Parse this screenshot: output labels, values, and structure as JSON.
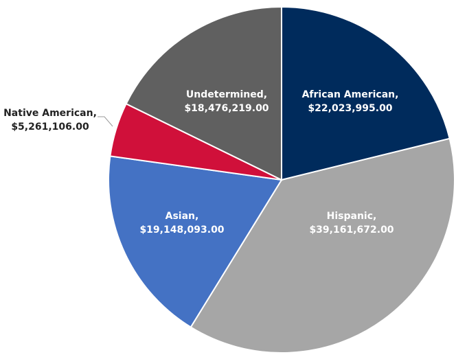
{
  "chart_data": {
    "type": "pie",
    "categories": [
      "African American,",
      "Hispanic,",
      "Asian,",
      "Native American,",
      "Undetermined,"
    ],
    "values": [
      22023995,
      39161672,
      19148093,
      5261106,
      18476219
    ],
    "value_labels": [
      "$22,023,995.00",
      "$39,161,672.00",
      "$19,148,093.00",
      "$5,261,106.00",
      "$18,476,219.00"
    ],
    "colors": [
      "#002b5c",
      "#a6a6a6",
      "#4472c4",
      "#d0103a",
      "#606060"
    ]
  }
}
